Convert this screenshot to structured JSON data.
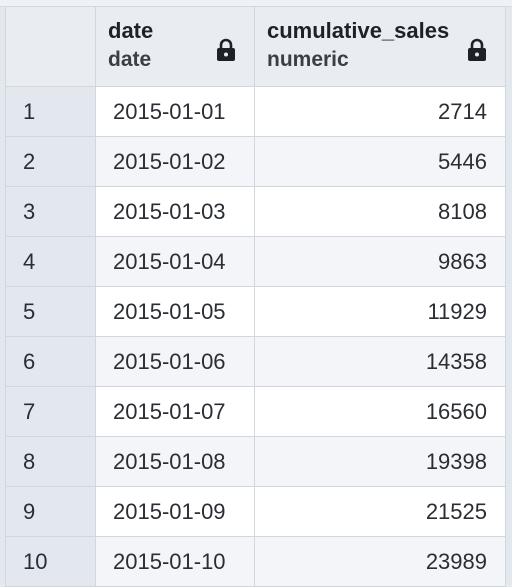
{
  "columns": [
    {
      "name": "date",
      "type": "date",
      "icon": "lock-icon"
    },
    {
      "name": "cumulative_sales",
      "type": "numeric",
      "icon": "lock-icon"
    }
  ],
  "rows": [
    {
      "index": "1",
      "date": "2015-01-01",
      "cumulative_sales": "2714"
    },
    {
      "index": "2",
      "date": "2015-01-02",
      "cumulative_sales": "5446"
    },
    {
      "index": "3",
      "date": "2015-01-03",
      "cumulative_sales": "8108"
    },
    {
      "index": "4",
      "date": "2015-01-04",
      "cumulative_sales": "9863"
    },
    {
      "index": "5",
      "date": "2015-01-05",
      "cumulative_sales": "11929"
    },
    {
      "index": "6",
      "date": "2015-01-06",
      "cumulative_sales": "14358"
    },
    {
      "index": "7",
      "date": "2015-01-07",
      "cumulative_sales": "16560"
    },
    {
      "index": "8",
      "date": "2015-01-08",
      "cumulative_sales": "19398"
    },
    {
      "index": "9",
      "date": "2015-01-09",
      "cumulative_sales": "21525"
    },
    {
      "index": "10",
      "date": "2015-01-10",
      "cumulative_sales": "23989"
    }
  ],
  "colors": {
    "header_bg": "#e9edf2",
    "index_bg": "#e3e8ef",
    "row_bg": "#ffffff",
    "alt_row_bg": "#f3f5f8",
    "border": "#d1d7df"
  }
}
